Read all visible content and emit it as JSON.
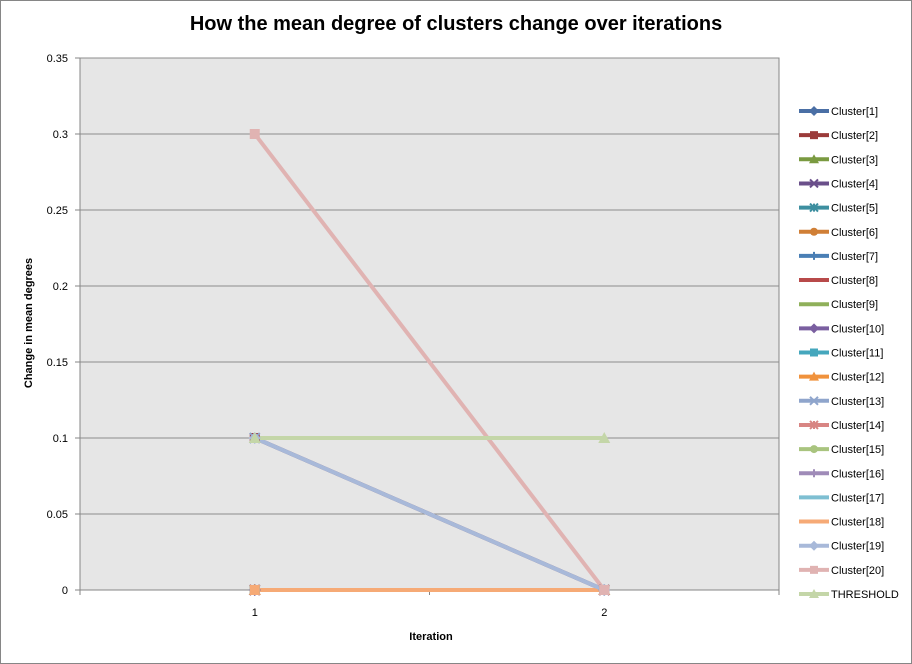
{
  "chart_data": {
    "type": "line",
    "title": "How the mean degree of clusters change over iterations",
    "xlabel": "Iteration",
    "ylabel": "Change in mean degrees",
    "x": [
      "1",
      "2"
    ],
    "ylim": [
      0,
      0.35
    ],
    "yticks": [
      "0",
      "0.05",
      "0.1",
      "0.15",
      "0.2",
      "0.25",
      "0.3",
      "0.35"
    ],
    "grid": true,
    "legend_position": "right",
    "plot_background": "#e6e6e6",
    "series": [
      {
        "name": "Cluster[1]",
        "values": [
          0,
          0
        ],
        "color": "#4a6fa5",
        "marker": "diamond"
      },
      {
        "name": "Cluster[2]",
        "values": [
          0.1,
          0
        ],
        "color": "#9b3b3a",
        "marker": "square"
      },
      {
        "name": "Cluster[3]",
        "values": [
          0,
          0
        ],
        "color": "#7a9a41",
        "marker": "triangle"
      },
      {
        "name": "Cluster[4]",
        "values": [
          0,
          0
        ],
        "color": "#6a4f8a",
        "marker": "x"
      },
      {
        "name": "Cluster[5]",
        "values": [
          0,
          0
        ],
        "color": "#3d8fa0",
        "marker": "asterisk"
      },
      {
        "name": "Cluster[6]",
        "values": [
          0,
          0
        ],
        "color": "#d07f36",
        "marker": "circle"
      },
      {
        "name": "Cluster[7]",
        "values": [
          0,
          0
        ],
        "color": "#4a7fb5",
        "marker": "plus"
      },
      {
        "name": "Cluster[8]",
        "values": [
          0,
          0
        ],
        "color": "#b84a4a",
        "marker": "none"
      },
      {
        "name": "Cluster[9]",
        "values": [
          0,
          0
        ],
        "color": "#8fb05a",
        "marker": "none"
      },
      {
        "name": "Cluster[10]",
        "values": [
          0,
          0
        ],
        "color": "#7a5fa0",
        "marker": "diamond"
      },
      {
        "name": "Cluster[11]",
        "values": [
          0,
          0
        ],
        "color": "#45a7bd",
        "marker": "square"
      },
      {
        "name": "Cluster[12]",
        "values": [
          0,
          0
        ],
        "color": "#f0923c",
        "marker": "triangle"
      },
      {
        "name": "Cluster[13]",
        "values": [
          0.1,
          0
        ],
        "color": "#8fa5cc",
        "marker": "x"
      },
      {
        "name": "Cluster[14]",
        "values": [
          0,
          0
        ],
        "color": "#d88583",
        "marker": "asterisk"
      },
      {
        "name": "Cluster[15]",
        "values": [
          0,
          0
        ],
        "color": "#a9c47f",
        "marker": "circle"
      },
      {
        "name": "Cluster[16]",
        "values": [
          0,
          0
        ],
        "color": "#9f8bb8",
        "marker": "plus"
      },
      {
        "name": "Cluster[17]",
        "values": [
          0,
          0
        ],
        "color": "#7ebfd2",
        "marker": "none"
      },
      {
        "name": "Cluster[18]",
        "values": [
          0,
          0
        ],
        "color": "#f6aa76",
        "marker": "none"
      },
      {
        "name": "Cluster[19]",
        "values": [
          0.1,
          0
        ],
        "color": "#a8b9d9",
        "marker": "diamond"
      },
      {
        "name": "Cluster[20]",
        "values": [
          0.3,
          0
        ],
        "color": "#e0b3b2",
        "marker": "square"
      },
      {
        "name": "THRESHOLD",
        "values": [
          0.1,
          0.1
        ],
        "color": "#c4d6a8",
        "marker": "triangle"
      }
    ]
  }
}
